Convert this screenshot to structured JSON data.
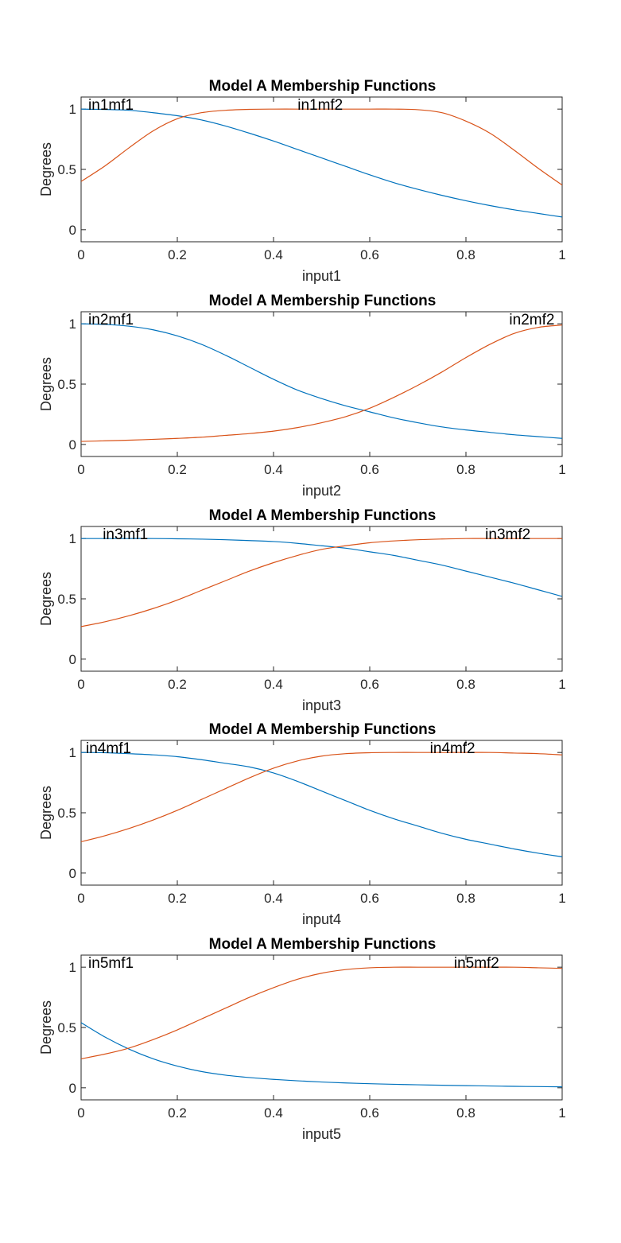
{
  "figure": {
    "background": "#ffffff",
    "axis_color": "#262626",
    "series_colors": [
      "#0072BD",
      "#D95319"
    ]
  },
  "chart_data": [
    {
      "type": "line",
      "title": "Model A Membership Functions",
      "xlabel": "input1",
      "ylabel": "Degrees",
      "xlim": [
        0,
        1
      ],
      "ylim": [
        -0.1,
        1.1
      ],
      "xticks": [
        0,
        0.2,
        0.4,
        0.6,
        0.8,
        1
      ],
      "xtick_labels": [
        "0",
        "0.2",
        "0.4",
        "0.6",
        "0.8",
        "1"
      ],
      "yticks": [
        0,
        0.5,
        1
      ],
      "ytick_labels": [
        "0",
        "0.5",
        "1"
      ],
      "x": [
        0,
        0.05,
        0.1,
        0.15,
        0.2,
        0.25,
        0.3,
        0.35,
        0.4,
        0.45,
        0.5,
        0.55,
        0.6,
        0.65,
        0.7,
        0.75,
        0.8,
        0.85,
        0.9,
        0.95,
        1
      ],
      "series": [
        {
          "name": "in1mf1",
          "label_at": [
            0.01,
            1.0
          ],
          "values": [
            1.0,
            0.997,
            0.99,
            0.97,
            0.945,
            0.91,
            0.86,
            0.8,
            0.735,
            0.665,
            0.595,
            0.525,
            0.455,
            0.39,
            0.335,
            0.285,
            0.24,
            0.2,
            0.165,
            0.135,
            0.105
          ]
        },
        {
          "name": "in1mf2",
          "label_at": [
            0.445,
            1.0
          ],
          "values": [
            0.4,
            0.53,
            0.68,
            0.82,
            0.92,
            0.97,
            0.99,
            0.998,
            1.0,
            1.0,
            1.0,
            1.0,
            1.0,
            1.0,
            0.995,
            0.97,
            0.9,
            0.8,
            0.66,
            0.51,
            0.37
          ]
        }
      ]
    },
    {
      "type": "line",
      "title": "Model A Membership Functions",
      "xlabel": "input2",
      "ylabel": "Degrees",
      "xlim": [
        0,
        1
      ],
      "ylim": [
        -0.1,
        1.1
      ],
      "xticks": [
        0,
        0.2,
        0.4,
        0.6,
        0.8,
        1
      ],
      "xtick_labels": [
        "0",
        "0.2",
        "0.4",
        "0.6",
        "0.8",
        "1"
      ],
      "yticks": [
        0,
        0.5,
        1
      ],
      "ytick_labels": [
        "0",
        "0.5",
        "1"
      ],
      "x": [
        0,
        0.05,
        0.1,
        0.15,
        0.2,
        0.25,
        0.3,
        0.35,
        0.4,
        0.45,
        0.5,
        0.55,
        0.6,
        0.65,
        0.7,
        0.75,
        0.8,
        0.85,
        0.9,
        0.95,
        1
      ],
      "series": [
        {
          "name": "in2mf1",
          "label_at": [
            0.01,
            1.0
          ],
          "values": [
            1.0,
            0.995,
            0.98,
            0.95,
            0.9,
            0.83,
            0.74,
            0.64,
            0.54,
            0.45,
            0.38,
            0.32,
            0.27,
            0.22,
            0.18,
            0.145,
            0.12,
            0.1,
            0.08,
            0.065,
            0.05
          ]
        },
        {
          "name": "in2mf2",
          "label_at": [
            0.885,
            1.0
          ],
          "values": [
            0.025,
            0.03,
            0.035,
            0.042,
            0.05,
            0.06,
            0.075,
            0.09,
            0.11,
            0.14,
            0.18,
            0.23,
            0.3,
            0.39,
            0.49,
            0.6,
            0.72,
            0.83,
            0.92,
            0.97,
            0.99
          ]
        }
      ]
    },
    {
      "type": "line",
      "title": "Model A Membership Functions",
      "xlabel": "input3",
      "ylabel": "Degrees",
      "xlim": [
        0,
        1
      ],
      "ylim": [
        -0.1,
        1.1
      ],
      "xticks": [
        0,
        0.2,
        0.4,
        0.6,
        0.8,
        1
      ],
      "xtick_labels": [
        "0",
        "0.2",
        "0.4",
        "0.6",
        "0.8",
        "1"
      ],
      "yticks": [
        0,
        0.5,
        1
      ],
      "ytick_labels": [
        "0",
        "0.5",
        "1"
      ],
      "x": [
        0,
        0.05,
        0.1,
        0.15,
        0.2,
        0.25,
        0.3,
        0.35,
        0.4,
        0.45,
        0.5,
        0.55,
        0.6,
        0.65,
        0.7,
        0.75,
        0.8,
        0.85,
        0.9,
        0.95,
        1
      ],
      "series": [
        {
          "name": "in3mf1",
          "label_at": [
            0.04,
            1.0
          ],
          "values": [
            1.0,
            1.0,
            1.0,
            1.0,
            0.998,
            0.995,
            0.99,
            0.983,
            0.975,
            0.96,
            0.94,
            0.92,
            0.89,
            0.86,
            0.82,
            0.78,
            0.73,
            0.68,
            0.63,
            0.575,
            0.52
          ]
        },
        {
          "name": "in3mf2",
          "label_at": [
            0.835,
            1.0
          ],
          "values": [
            0.27,
            0.31,
            0.36,
            0.42,
            0.49,
            0.57,
            0.65,
            0.73,
            0.8,
            0.86,
            0.91,
            0.94,
            0.965,
            0.98,
            0.99,
            0.996,
            1.0,
            1.0,
            1.0,
            1.0,
            1.0
          ]
        }
      ]
    },
    {
      "type": "line",
      "title": "Model A Membership Functions",
      "xlabel": "input4",
      "ylabel": "Degrees",
      "xlim": [
        0,
        1
      ],
      "ylim": [
        -0.1,
        1.1
      ],
      "xticks": [
        0,
        0.2,
        0.4,
        0.6,
        0.8,
        1
      ],
      "xtick_labels": [
        "0",
        "0.2",
        "0.4",
        "0.6",
        "0.8",
        "1"
      ],
      "yticks": [
        0,
        0.5,
        1
      ],
      "ytick_labels": [
        "0",
        "0.5",
        "1"
      ],
      "x": [
        0,
        0.05,
        0.1,
        0.15,
        0.2,
        0.25,
        0.3,
        0.35,
        0.4,
        0.45,
        0.5,
        0.55,
        0.6,
        0.65,
        0.7,
        0.75,
        0.8,
        0.85,
        0.9,
        0.95,
        1
      ],
      "series": [
        {
          "name": "in4mf1",
          "label_at": [
            0.005,
            1.0
          ],
          "values": [
            1.0,
            0.998,
            0.99,
            0.98,
            0.965,
            0.94,
            0.91,
            0.88,
            0.83,
            0.76,
            0.68,
            0.6,
            0.52,
            0.45,
            0.39,
            0.33,
            0.28,
            0.24,
            0.2,
            0.165,
            0.135
          ]
        },
        {
          "name": "in4mf2",
          "label_at": [
            0.72,
            1.0
          ],
          "values": [
            0.26,
            0.31,
            0.37,
            0.44,
            0.52,
            0.61,
            0.7,
            0.79,
            0.87,
            0.93,
            0.97,
            0.99,
            0.998,
            1.0,
            1.0,
            1.0,
            1.0,
            1.0,
            0.995,
            0.99,
            0.98
          ]
        }
      ]
    },
    {
      "type": "line",
      "title": "Model A Membership Functions",
      "xlabel": "input5",
      "ylabel": "Degrees",
      "xlim": [
        0,
        1
      ],
      "ylim": [
        -0.1,
        1.1
      ],
      "xticks": [
        0,
        0.2,
        0.4,
        0.6,
        0.8,
        1
      ],
      "xtick_labels": [
        "0",
        "0.2",
        "0.4",
        "0.6",
        "0.8",
        "1"
      ],
      "yticks": [
        0,
        0.5,
        1
      ],
      "ytick_labels": [
        "0",
        "0.5",
        "1"
      ],
      "x": [
        0,
        0.05,
        0.1,
        0.15,
        0.2,
        0.25,
        0.3,
        0.35,
        0.4,
        0.45,
        0.5,
        0.55,
        0.6,
        0.65,
        0.7,
        0.75,
        0.8,
        0.85,
        0.9,
        0.95,
        1
      ],
      "series": [
        {
          "name": "in5mf1",
          "label_at": [
            0.01,
            1.0
          ],
          "values": [
            0.54,
            0.42,
            0.32,
            0.24,
            0.18,
            0.135,
            0.105,
            0.085,
            0.07,
            0.058,
            0.048,
            0.04,
            0.034,
            0.029,
            0.025,
            0.021,
            0.018,
            0.015,
            0.012,
            0.01,
            0.008
          ]
        },
        {
          "name": "in5mf2",
          "label_at": [
            0.77,
            1.0
          ],
          "values": [
            0.24,
            0.28,
            0.33,
            0.4,
            0.48,
            0.57,
            0.66,
            0.75,
            0.83,
            0.9,
            0.95,
            0.98,
            0.995,
            1.0,
            1.0,
            1.0,
            1.0,
            1.0,
            1.0,
            0.995,
            0.99
          ]
        }
      ]
    }
  ]
}
